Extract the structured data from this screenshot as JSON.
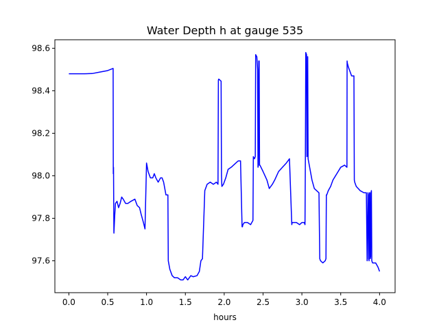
{
  "chart_data": {
    "type": "line",
    "title": "Water Depth h at gauge 535",
    "xlabel": "hours",
    "ylabel": "",
    "xlim": [
      -0.18,
      4.2
    ],
    "ylim": [
      97.45,
      98.64
    ],
    "xticks": [
      0.0,
      0.5,
      1.0,
      1.5,
      2.0,
      2.5,
      3.0,
      3.5,
      4.0
    ],
    "xtick_labels": [
      "0.0",
      "0.5",
      "1.0",
      "1.5",
      "2.0",
      "2.5",
      "3.0",
      "3.5",
      "4.0"
    ],
    "yticks": [
      97.6,
      97.8,
      98.0,
      98.2,
      98.4,
      98.6
    ],
    "ytick_labels": [
      "97.6",
      "97.8",
      "98.0",
      "98.2",
      "98.4",
      "98.6"
    ],
    "grid": false,
    "series": [
      {
        "color": "#0000ff",
        "x": [
          0.0,
          0.2,
          0.3,
          0.4,
          0.5,
          0.57,
          0.572,
          0.575,
          0.578,
          0.58,
          0.59,
          0.6,
          0.62,
          0.64,
          0.66,
          0.68,
          0.7,
          0.73,
          0.76,
          0.8,
          0.85,
          0.88,
          0.91,
          0.93,
          0.96,
          0.98,
          1.0,
          1.01,
          1.02,
          1.05,
          1.08,
          1.1,
          1.12,
          1.15,
          1.18,
          1.2,
          1.22,
          1.25,
          1.275,
          1.28,
          1.3,
          1.33,
          1.36,
          1.4,
          1.44,
          1.47,
          1.5,
          1.53,
          1.57,
          1.6,
          1.65,
          1.68,
          1.7,
          1.72,
          1.75,
          1.78,
          1.82,
          1.86,
          1.9,
          1.92,
          1.925,
          1.93,
          1.96,
          1.965,
          1.97,
          1.99,
          2.02,
          2.05,
          2.09,
          2.12,
          2.15,
          2.18,
          2.21,
          2.23,
          2.235,
          2.24,
          2.26,
          2.3,
          2.34,
          2.37,
          2.375,
          2.39,
          2.4,
          2.405,
          2.42,
          2.43,
          2.435,
          2.44,
          2.445,
          2.45,
          2.455,
          2.46,
          2.5,
          2.55,
          2.58,
          2.62,
          2.65,
          2.7,
          2.75,
          2.8,
          2.84,
          2.87,
          2.875,
          2.88,
          2.9,
          2.93,
          2.97,
          3.0,
          3.03,
          3.04,
          3.045,
          3.05,
          3.06,
          3.065,
          3.07,
          3.075,
          3.08,
          3.1,
          3.13,
          3.16,
          3.19,
          3.22,
          3.23,
          3.24,
          3.27,
          3.3,
          3.31,
          3.315,
          3.32,
          3.34,
          3.37,
          3.4,
          3.45,
          3.5,
          3.55,
          3.58,
          3.582,
          3.585,
          3.6,
          3.62,
          3.64,
          3.67,
          3.675,
          3.68,
          3.7,
          3.75,
          3.8,
          3.83,
          3.84,
          3.842,
          3.85,
          3.855,
          3.86,
          3.865,
          3.87,
          3.875,
          3.88,
          3.885,
          3.89,
          3.895,
          3.9,
          3.91,
          3.95,
          3.98,
          4.0
        ],
        "y": [
          98.48,
          98.48,
          98.481,
          98.488,
          98.495,
          98.505,
          98.01,
          98.04,
          97.84,
          97.73,
          97.81,
          97.87,
          97.88,
          97.85,
          97.87,
          97.9,
          97.89,
          97.87,
          97.87,
          97.88,
          97.89,
          97.86,
          97.85,
          97.82,
          97.78,
          97.75,
          98.06,
          98.04,
          98.02,
          97.99,
          97.99,
          98.01,
          97.99,
          97.97,
          97.99,
          97.99,
          97.97,
          97.91,
          97.91,
          97.6,
          97.56,
          97.53,
          97.52,
          97.52,
          97.51,
          97.51,
          97.525,
          97.51,
          97.53,
          97.525,
          97.53,
          97.55,
          97.6,
          97.61,
          97.93,
          97.96,
          97.97,
          97.96,
          97.97,
          97.96,
          98.45,
          98.455,
          98.445,
          98.0,
          97.95,
          97.96,
          97.99,
          98.03,
          98.04,
          98.05,
          98.06,
          98.07,
          98.07,
          97.76,
          97.76,
          97.77,
          97.78,
          97.78,
          97.77,
          97.79,
          98.09,
          98.08,
          98.09,
          98.57,
          98.56,
          98.5,
          98.04,
          98.05,
          98.54,
          98.54,
          98.05,
          98.05,
          98.02,
          97.98,
          97.94,
          97.96,
          97.98,
          98.02,
          98.04,
          98.06,
          98.08,
          97.77,
          97.78,
          97.78,
          97.78,
          97.78,
          97.77,
          97.78,
          97.78,
          97.77,
          98.09,
          98.58,
          98.57,
          98.09,
          98.1,
          98.56,
          98.08,
          98.04,
          97.98,
          97.94,
          97.93,
          97.92,
          97.61,
          97.6,
          97.59,
          97.6,
          97.61,
          97.91,
          97.91,
          97.93,
          97.95,
          97.98,
          98.01,
          98.04,
          98.05,
          98.04,
          98.54,
          98.53,
          98.51,
          98.49,
          98.47,
          98.47,
          97.98,
          97.97,
          97.95,
          97.93,
          97.92,
          97.92,
          97.6,
          97.61,
          97.92,
          97.91,
          97.61,
          97.6,
          97.92,
          97.92,
          97.61,
          97.62,
          97.92,
          97.93,
          97.6,
          97.59,
          97.59,
          97.57,
          97.55
        ]
      }
    ]
  }
}
